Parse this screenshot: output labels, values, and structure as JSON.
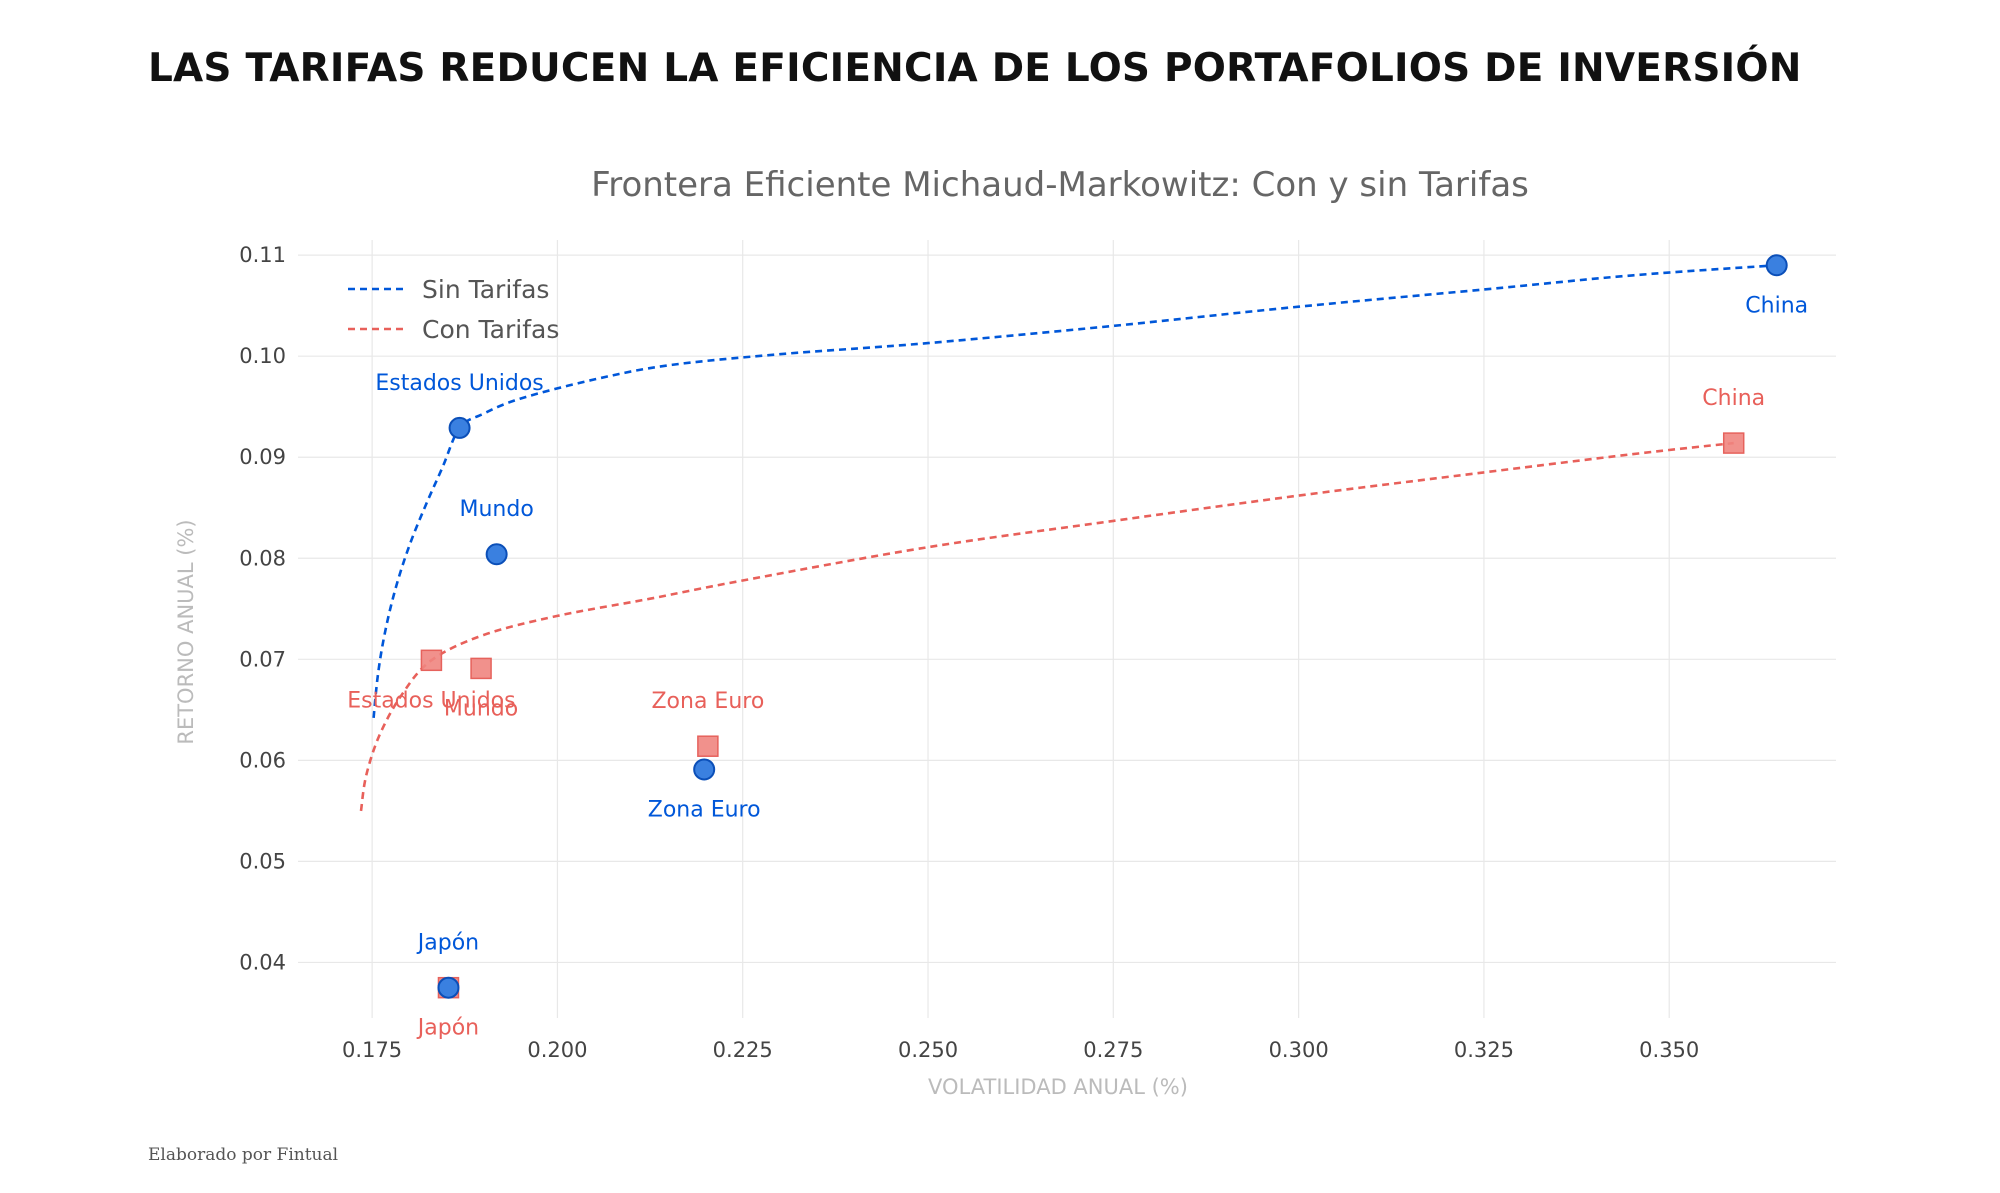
{
  "headline": "LAS TARIFAS REDUCEN LA EFICIENCIA DE LOS PORTAFOLIOS DE INVERSIÓN",
  "credit": "Elaborado por Fintual",
  "chart_data": {
    "type": "scatter",
    "title": "Frontera Eficiente Michaud-Markowitz: Con y sin Tarifas",
    "xlabel": "VOLATILIDAD ANUAL (%)",
    "ylabel": "RETORNO ANUAL (%)",
    "xlim": [
      0.165,
      0.3725
    ],
    "ylim": [
      0.0345,
      0.1115
    ],
    "x_ticks": [
      0.175,
      0.2,
      0.225,
      0.25,
      0.275,
      0.3,
      0.325,
      0.35
    ],
    "x_tick_labels": [
      "0.175",
      "0.200",
      "0.225",
      "0.250",
      "0.275",
      "0.300",
      "0.325",
      "0.350"
    ],
    "y_ticks": [
      0.04,
      0.05,
      0.06,
      0.07,
      0.08,
      0.09,
      0.1,
      0.11
    ],
    "y_tick_labels": [
      "0.04",
      "0.05",
      "0.06",
      "0.07",
      "0.08",
      "0.09",
      "0.10",
      "0.11"
    ],
    "grid": true,
    "legend_position": "top-left",
    "series": [
      {
        "name": "Sin Tarifas",
        "color": "#0057d9",
        "marker": "circle",
        "points": [
          {
            "label": "China",
            "x": 0.3645,
            "y": 0.109,
            "label_pos": "below"
          },
          {
            "label": "Estados Unidos",
            "x": 0.1868,
            "y": 0.0929,
            "label_pos": "above"
          },
          {
            "label": "Mundo",
            "x": 0.1918,
            "y": 0.0804,
            "label_pos": "above"
          },
          {
            "label": "Zona Euro",
            "x": 0.2198,
            "y": 0.0591,
            "label_pos": "below"
          },
          {
            "label": "Japón",
            "x": 0.1853,
            "y": 0.0375,
            "label_pos": "above"
          }
        ],
        "frontier": [
          [
            0.1752,
            0.0642
          ],
          [
            0.1758,
            0.0686
          ],
          [
            0.1768,
            0.0729
          ],
          [
            0.1782,
            0.0771
          ],
          [
            0.18,
            0.0812
          ],
          [
            0.1822,
            0.0852
          ],
          [
            0.1845,
            0.089
          ],
          [
            0.1868,
            0.0929
          ],
          [
            0.19,
            0.0943
          ],
          [
            0.195,
            0.0958
          ],
          [
            0.205,
            0.0977
          ],
          [
            0.215,
            0.0991
          ],
          [
            0.23,
            0.1002
          ],
          [
            0.25,
            0.1013
          ],
          [
            0.275,
            0.103
          ],
          [
            0.3,
            0.1049
          ],
          [
            0.325,
            0.1066
          ],
          [
            0.345,
            0.108
          ],
          [
            0.3645,
            0.109
          ]
        ]
      },
      {
        "name": "Con Tarifas",
        "color": "#e8605a",
        "marker": "square",
        "points": [
          {
            "label": "China",
            "x": 0.3587,
            "y": 0.0914,
            "label_pos": "above"
          },
          {
            "label": "Estados Unidos",
            "x": 0.183,
            "y": 0.0699,
            "label_pos": "below"
          },
          {
            "label": "Mundo",
            "x": 0.1897,
            "y": 0.0691,
            "label_pos": "below"
          },
          {
            "label": "Zona Euro",
            "x": 0.2203,
            "y": 0.0614,
            "label_pos": "above"
          },
          {
            "label": "Japón",
            "x": 0.1853,
            "y": 0.0375,
            "label_pos": "below"
          }
        ],
        "frontier": [
          [
            0.1735,
            0.055
          ],
          [
            0.1742,
            0.0585
          ],
          [
            0.176,
            0.0625
          ],
          [
            0.179,
            0.0665
          ],
          [
            0.183,
            0.0699
          ],
          [
            0.19,
            0.0724
          ],
          [
            0.2,
            0.0743
          ],
          [
            0.2125,
            0.076
          ],
          [
            0.225,
            0.0778
          ],
          [
            0.25,
            0.0811
          ],
          [
            0.275,
            0.0837
          ],
          [
            0.3,
            0.0862
          ],
          [
            0.325,
            0.0885
          ],
          [
            0.345,
            0.0903
          ],
          [
            0.3587,
            0.0914
          ]
        ]
      }
    ]
  }
}
